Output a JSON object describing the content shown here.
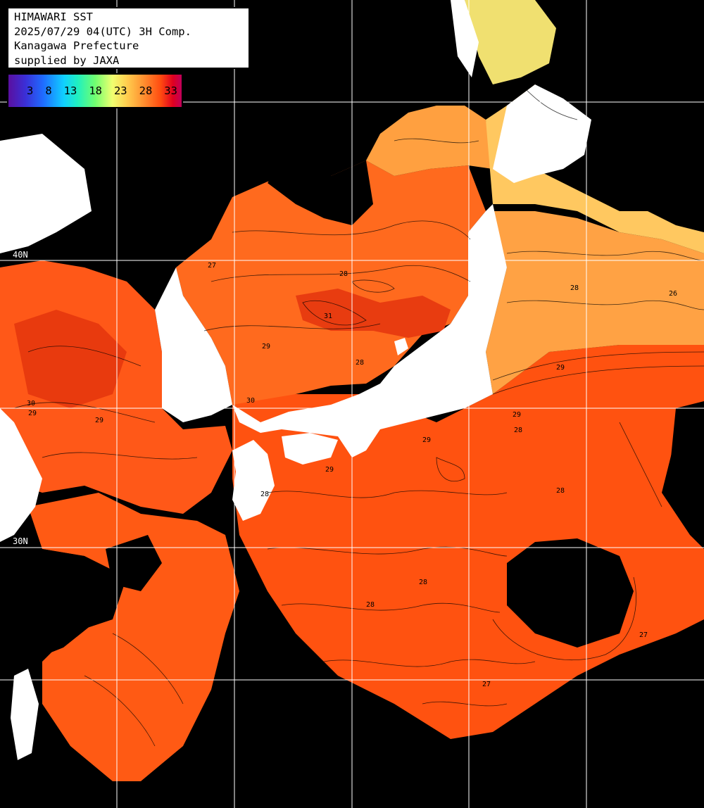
{
  "title_box": {
    "line1": "HIMAWARI SST",
    "line2": "2025/07/29 04(UTC) 3H Comp.",
    "line3": "Kanagawa Prefecture",
    "line4": "supplied by JAXA"
  },
  "legend": {
    "ticks": [
      "3",
      "8",
      "13",
      "18",
      "23",
      "28",
      "33"
    ]
  },
  "lat_labels": {
    "l40": "40N",
    "l30": "30N"
  },
  "contour_labels": [
    "27",
    "28",
    "29",
    "30",
    "31",
    "28",
    "29",
    "27",
    "26",
    "28",
    "29",
    "28",
    "29",
    "28",
    "27",
    "28",
    "29",
    "30",
    "28",
    "29",
    "27",
    "28",
    "29"
  ],
  "colors": {
    "land": "#ffffff",
    "cloud": "#000000",
    "sea_warm": "#ff5a14",
    "sea_hot": "#f03a10",
    "sea_mid": "#ff7a26",
    "sea_cool": "#ffa64a",
    "sea_cooler": "#f0d060",
    "grid": "#ffffff"
  }
}
